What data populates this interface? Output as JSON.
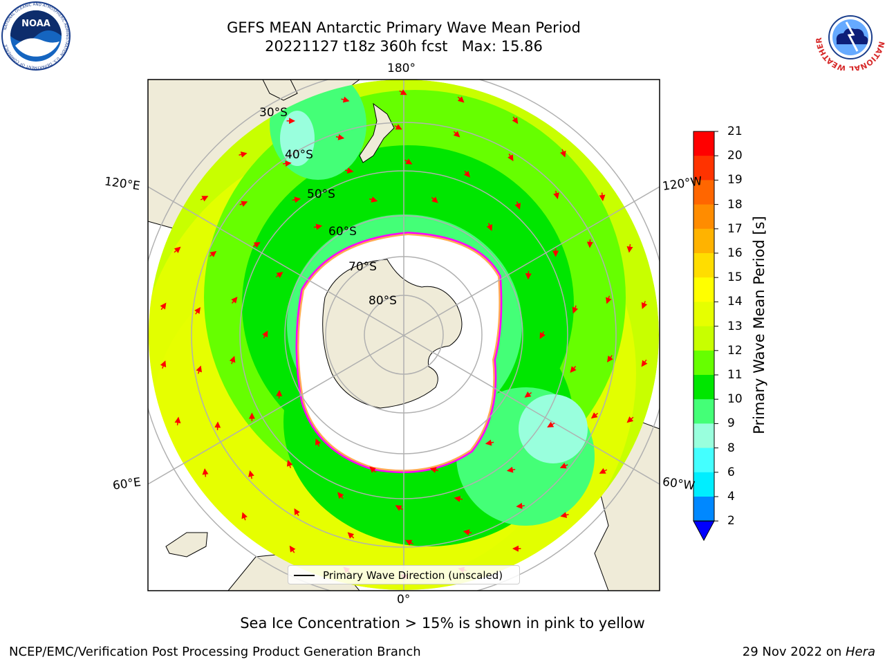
{
  "header": {
    "title_line1": "GEFS MEAN Antarctic Primary Wave Mean Period",
    "title_line2": "20221127 t18z 360h fcst   Max: 15.86"
  },
  "logos": {
    "noaa": {
      "name": "NOAA",
      "ring_text": "NATIONAL OCEANIC AND ATMOSPHERIC ADMINISTRATION",
      "bottom_text": "U.S. DEPARTMENT OF COMMERCE"
    },
    "nws": {
      "ring_text": "NATIONAL WEATHER SERVICE"
    }
  },
  "map": {
    "projection": "south-polar-stereographic",
    "longitude_labels": {
      "top": "180°",
      "bottom": "0°",
      "left_upper": "120°E",
      "left_lower": "60°E",
      "right_upper": "120°W",
      "right_lower": "60°W"
    },
    "latitude_labels": [
      "30°S",
      "40°S",
      "50°S",
      "60°S",
      "70°S",
      "80°S"
    ],
    "sea_ice_colors": [
      "#ff00ff",
      "#ff66cc",
      "#ffaa55",
      "#ffcc66",
      "#ffffff"
    ],
    "land_color": "#efebd8",
    "arrow_color": "#ff0000"
  },
  "legend": {
    "label": "Primary Wave Direction (unscaled)"
  },
  "colorbar": {
    "label": "Primary Wave Mean Period [s]",
    "ticks": [
      "21",
      "20",
      "19",
      "18",
      "17",
      "16",
      "15",
      "14",
      "13",
      "12",
      "11",
      "10",
      "9",
      "8",
      "6",
      "4",
      "2"
    ],
    "colors": [
      "#ff0000",
      "#ff3300",
      "#ff6600",
      "#ff8c00",
      "#ffb300",
      "#ffdd00",
      "#ffff00",
      "#e6ff00",
      "#c8ff00",
      "#66ff00",
      "#00e600",
      "#44ff77",
      "#99ffdd",
      "#44ffff",
      "#00eeff",
      "#0088ff"
    ],
    "extend_color": "#0000ff"
  },
  "notes": {
    "sea_ice": "Sea Ice Concentration > 15% is shown in pink to yellow"
  },
  "footer": {
    "left": "NCEP/EMC/Verification Post Processing Product Generation Branch",
    "right_prefix": "29 Nov 2022 on ",
    "right_host": "Hera"
  }
}
